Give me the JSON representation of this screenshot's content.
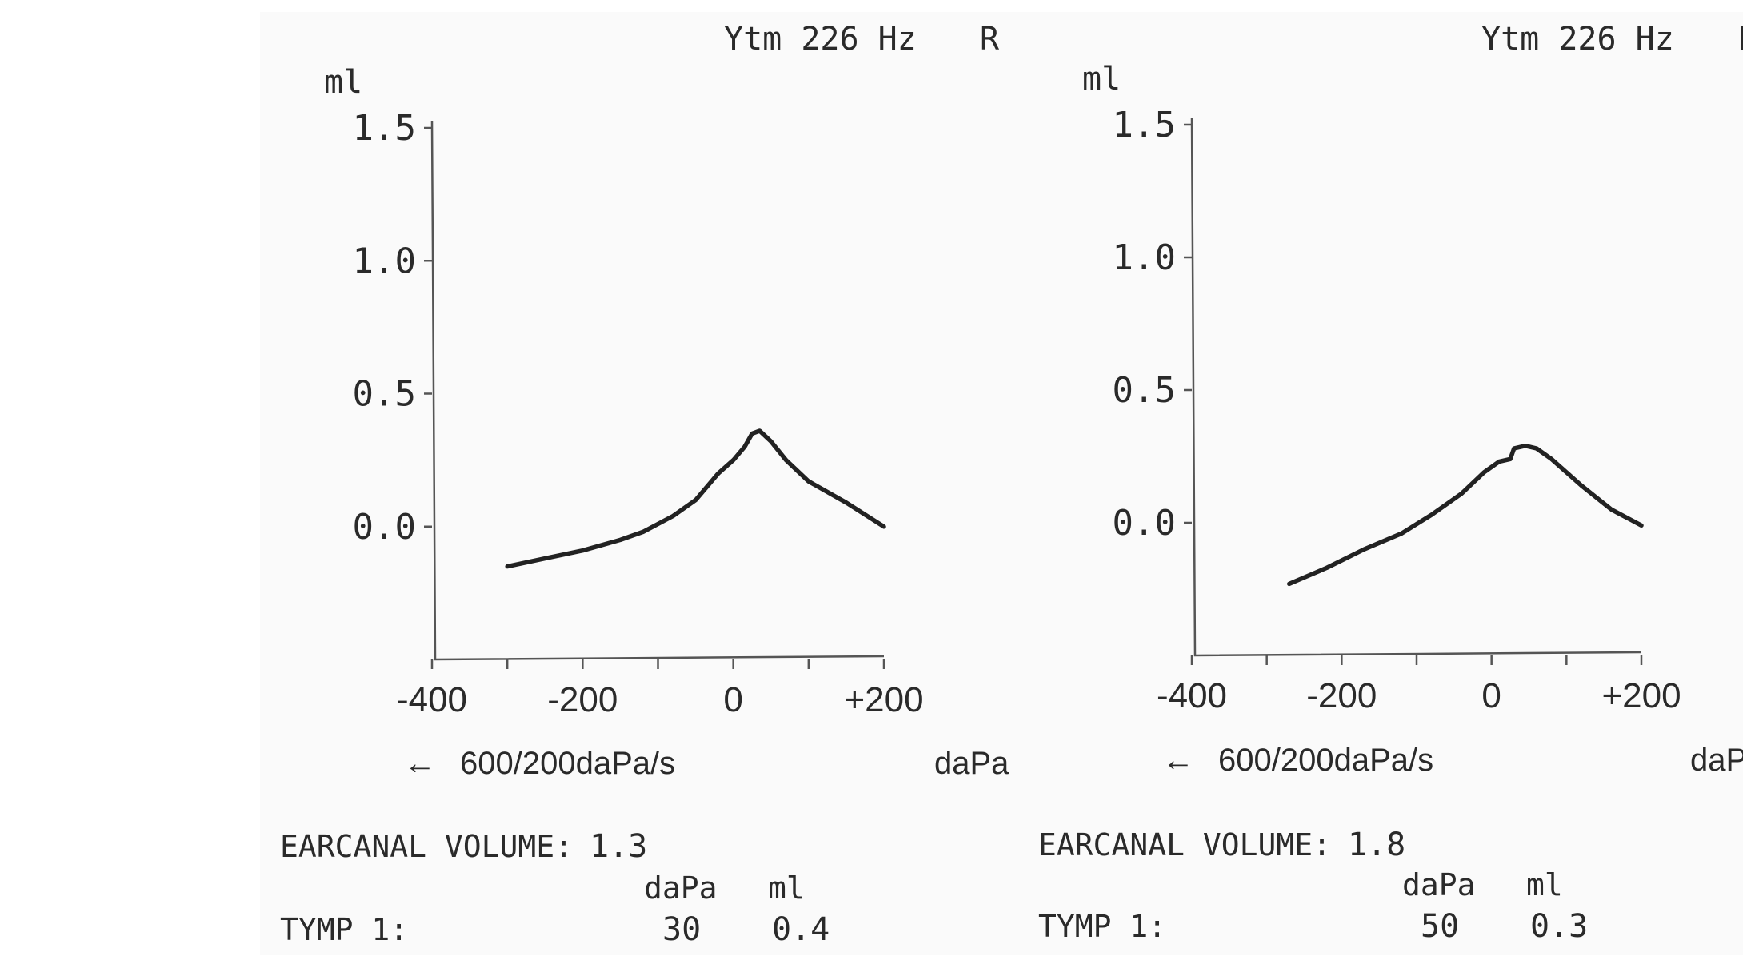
{
  "chart_data": [
    {
      "type": "line",
      "header": "Ytm 226 Hz",
      "ear": "R",
      "ylabel": "ml",
      "xlabel": "daPa",
      "speed_label": "600/200daPa/s",
      "arrow": "←",
      "ylim": [
        -0.5,
        1.5
      ],
      "xlim": [
        -400,
        200
      ],
      "yticks": [
        0.0,
        0.5,
        1.0,
        1.5
      ],
      "ytick_labels": [
        "0.0",
        "0.5",
        "1.0",
        "1.5"
      ],
      "xticks": [
        -400,
        -200,
        0,
        200
      ],
      "xtick_labels": [
        "-400",
        "-200",
        "0",
        "+200"
      ],
      "series": [
        {
          "x": [
            -300,
            -250,
            -200,
            -150,
            -120,
            -80,
            -50,
            -20,
            0,
            15,
            25,
            35,
            50,
            70,
            100,
            150,
            200
          ],
          "y": [
            -0.15,
            -0.12,
            -0.09,
            -0.05,
            -0.02,
            0.04,
            0.1,
            0.2,
            0.25,
            0.3,
            0.35,
            0.36,
            0.32,
            0.25,
            0.17,
            0.09,
            0.0
          ]
        }
      ],
      "earcanal_label": "EARCANAL VOLUME:",
      "earcanal_value": "1.3",
      "col_dapa": "daPa",
      "col_ml": "ml",
      "tymp_label": "TYMP 1:",
      "tymp_dapa": "30",
      "tymp_ml": "0.4"
    },
    {
      "type": "line",
      "header": "Ytm 226 Hz",
      "ear": "L",
      "ylabel": "ml",
      "xlabel": "daPa",
      "speed_label": "600/200daPa/s",
      "arrow": "←",
      "ylim": [
        -0.5,
        1.5
      ],
      "xlim": [
        -400,
        200
      ],
      "yticks": [
        0.0,
        0.5,
        1.0,
        1.5
      ],
      "ytick_labels": [
        "0.0",
        "0.5",
        "1.0",
        "1.5"
      ],
      "xticks": [
        -400,
        -200,
        0,
        200
      ],
      "xtick_labels": [
        "-400",
        "-200",
        "0",
        "+200"
      ],
      "series": [
        {
          "x": [
            -270,
            -220,
            -170,
            -120,
            -80,
            -40,
            -10,
            10,
            25,
            30,
            45,
            60,
            80,
            120,
            160,
            200
          ],
          "y": [
            -0.23,
            -0.17,
            -0.1,
            -0.04,
            0.03,
            0.11,
            0.19,
            0.23,
            0.24,
            0.28,
            0.29,
            0.28,
            0.24,
            0.14,
            0.05,
            -0.01
          ]
        }
      ],
      "earcanal_label": "EARCANAL VOLUME:",
      "earcanal_value": "1.8",
      "col_dapa": "daPa",
      "col_ml": "ml",
      "tymp_label": "TYMP 1:",
      "tymp_dapa": "50",
      "tymp_ml": "0.3"
    }
  ]
}
